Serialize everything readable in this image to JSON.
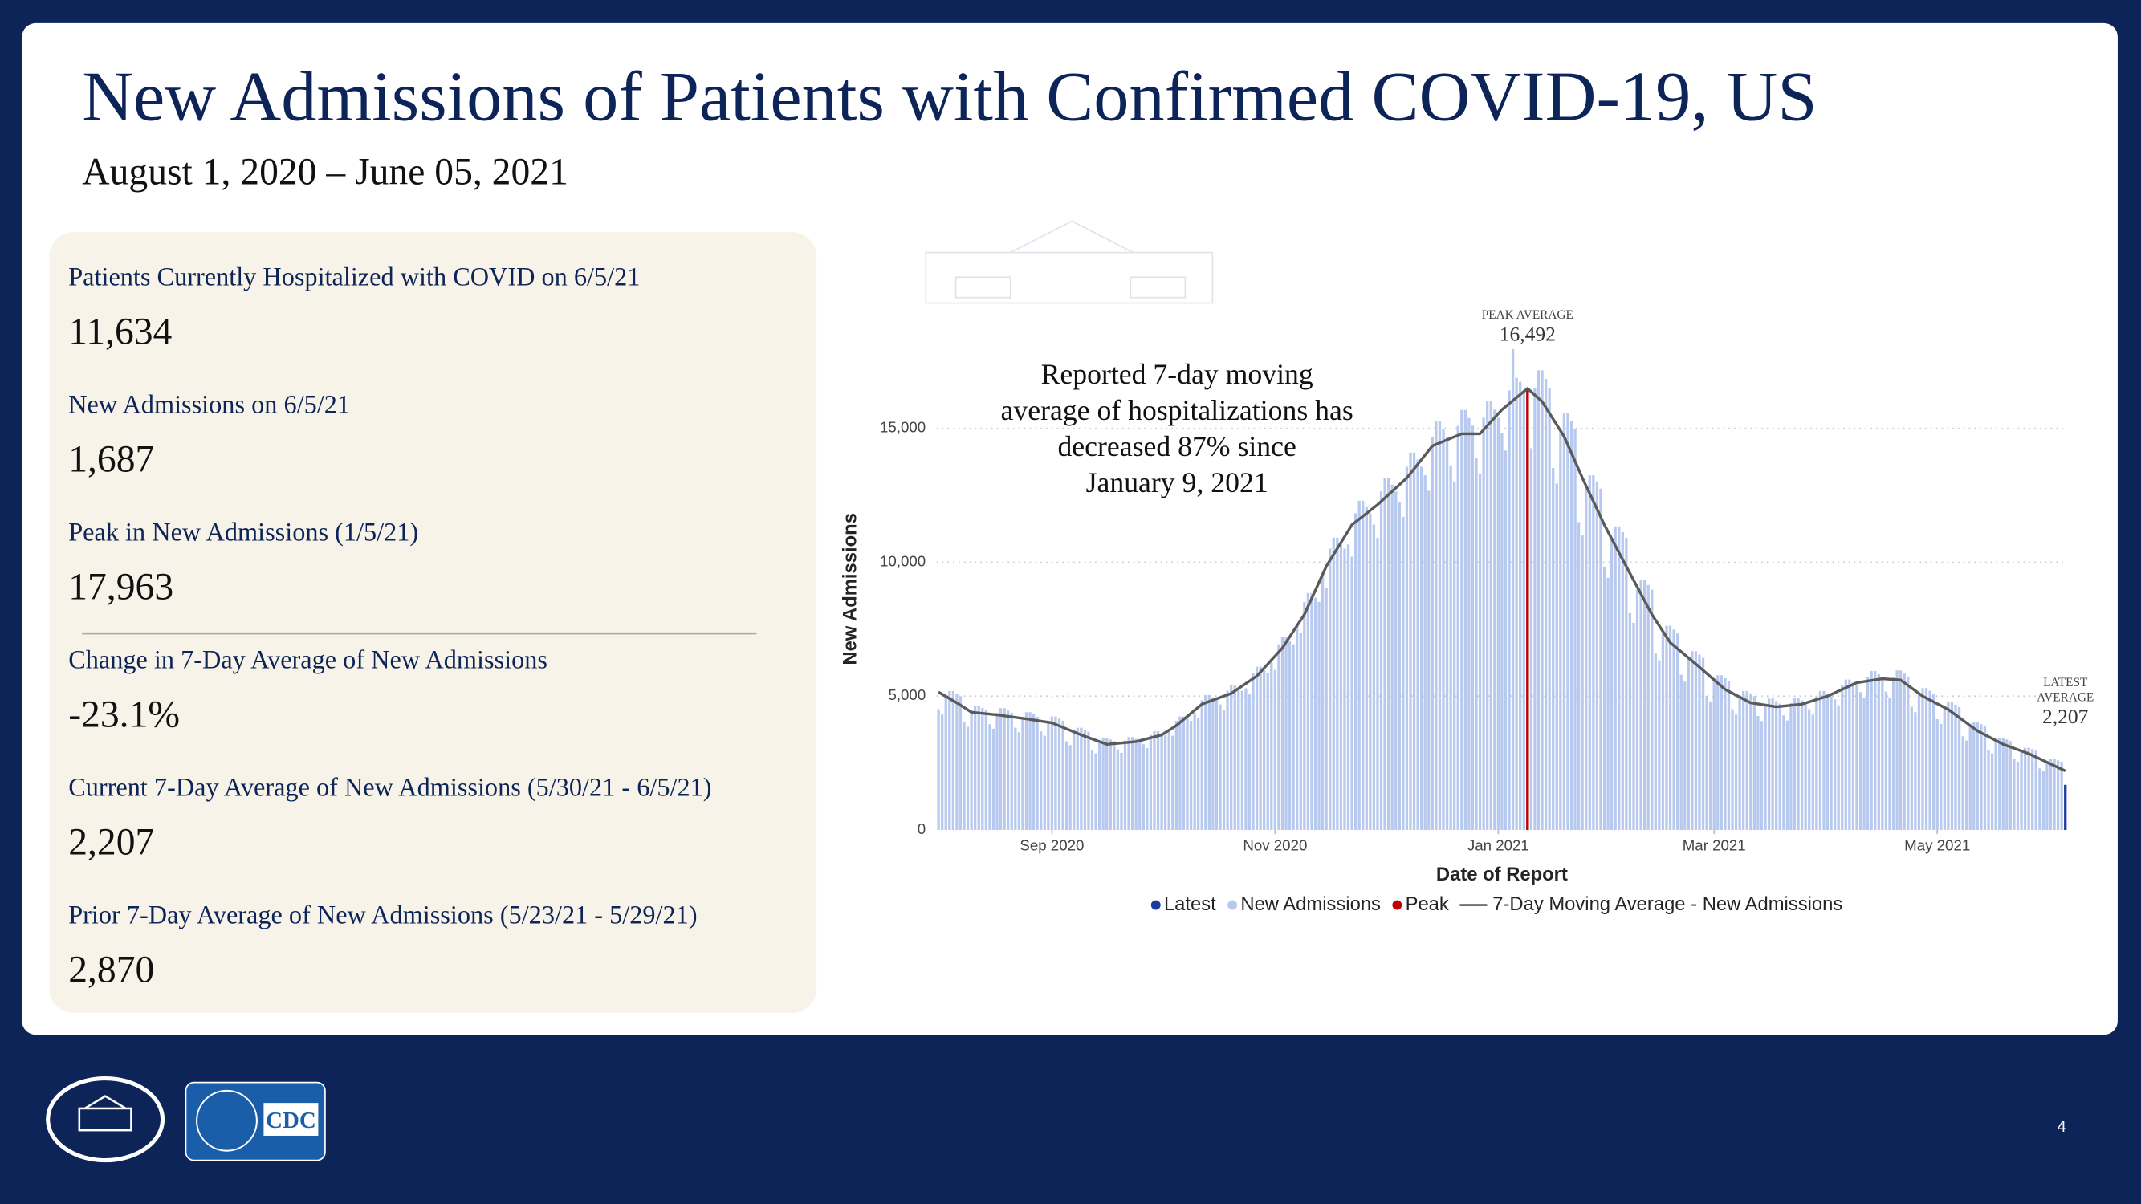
{
  "header": {
    "title": "New Admissions of Patients with Confirmed COVID-19, US",
    "subtitle": "August 1, 2020 – June 05, 2021"
  },
  "stats": [
    {
      "label": "Patients Currently Hospitalized with COVID on 6/5/21",
      "value": "11,634"
    },
    {
      "label": "New Admissions on 6/5/21",
      "value": "1,687"
    },
    {
      "label": "Peak in New Admissions (1/5/21)",
      "value": "17,963"
    },
    {
      "label": "Change in 7-Day Average of New Admissions",
      "value": "-23.1%"
    },
    {
      "label": "Current 7-Day Average of New Admissions (5/30/21 - 6/5/21)",
      "value": "2,207"
    },
    {
      "label": "Prior 7-Day Average of New Admissions (5/23/21 - 5/29/21)",
      "value": "2,870"
    }
  ],
  "chart_data": {
    "type": "bar",
    "x_label": "Date of Report",
    "y_label": "New Admissions",
    "xlim": [
      -0.5,
      308.5
    ],
    "xticks": [
      {
        "value": 31,
        "label": "Sep 2020"
      },
      {
        "value": 92,
        "label": "Nov 2020"
      },
      {
        "value": 153,
        "label": "Jan 2021"
      },
      {
        "value": 212,
        "label": "Mar 2021"
      },
      {
        "value": 273,
        "label": "May 2021"
      }
    ],
    "ylim": [
      0,
      18000
    ],
    "yticks": [
      0,
      {
        "value": 5000,
        "label": "5,000"
      },
      {
        "value": 10000,
        "label": "10,000"
      },
      {
        "value": 15000,
        "label": "15,000"
      }
    ],
    "grid": true,
    "legend": "bottom",
    "callout_lines": [
      "Reported 7-day moving",
      "average of hospitalizations has",
      "decreased 87% since",
      "January 9, 2021"
    ],
    "annotations": [
      {
        "title_lines": [
          "PEAK AVERAGE"
        ],
        "x": 161,
        "value": 16492,
        "label": "16,492"
      },
      {
        "title_lines": [
          "LATEST",
          "AVERAGE"
        ],
        "x": 308,
        "value": 2207,
        "label": "2,207"
      }
    ],
    "series": [
      {
        "name": "Latest",
        "type": "bar",
        "color": "#1c3a9e",
        "x": [
          308
        ],
        "values": [
          1687
        ]
      },
      {
        "name": "New Admissions",
        "type": "bar",
        "color": "#b7c9ee",
        "values": [
          4510,
          4310,
          5000,
          5190,
          5190,
          5100,
          5000,
          4030,
          3850,
          4470,
          4640,
          4640,
          4560,
          4470,
          3950,
          3780,
          4380,
          4550,
          4550,
          4460,
          4380,
          3820,
          3650,
          4230,
          4400,
          4400,
          4320,
          4230,
          3680,
          3520,
          4080,
          4240,
          4240,
          4160,
          4080,
          3310,
          3170,
          3670,
          3820,
          3820,
          3740,
          3670,
          2990,
          2860,
          3320,
          3450,
          3450,
          3380,
          3320,
          3010,
          2880,
          3340,
          3470,
          3470,
          3400,
          3340,
          3200,
          3060,
          3550,
          3690,
          3690,
          3620,
          3550,
          3680,
          3520,
          4080,
          4240,
          4240,
          4160,
          4080,
          4370,
          4180,
          4850,
          5040,
          5040,
          4940,
          4850,
          4690,
          4490,
          5200,
          5410,
          5410,
          5300,
          5200,
          5290,
          5060,
          5870,
          6100,
          6100,
          5980,
          5870,
          6260,
          5980,
          6940,
          7210,
          7210,
          7070,
          6940,
          7680,
          7350,
          8520,
          8850,
          8850,
          8680,
          8520,
          9480,
          9060,
          10510,
          10920,
          10920,
          10710,
          10510,
          10670,
          10210,
          11830,
          12300,
          12300,
          12060,
          11830,
          11410,
          10910,
          12650,
          13140,
          13140,
          12900,
          12650,
          12240,
          11700,
          13570,
          14100,
          14100,
          13830,
          13570,
          13250,
          12670,
          14690,
          15260,
          15260,
          14980,
          14690,
          13620,
          13020,
          15100,
          15690,
          15690,
          15390,
          15100,
          13890,
          13290,
          15400,
          16010,
          16010,
          15700,
          15400,
          14810,
          14170,
          16420,
          17963,
          16890,
          16740,
          16420,
          14900,
          14260,
          16520,
          17170,
          17170,
          16850,
          16520,
          13520,
          12940,
          14990,
          15580,
          15580,
          15290,
          14990,
          11500,
          11000,
          12750,
          13250,
          13250,
          13000,
          12750,
          9840,
          9420,
          10910,
          11340,
          11340,
          11130,
          10910,
          8100,
          7740,
          8980,
          9330,
          9330,
          9150,
          8980,
          6620,
          6340,
          7340,
          7630,
          7630,
          7490,
          7340,
          5800,
          5540,
          6430,
          6680,
          6680,
          6550,
          6430,
          5010,
          4800,
          5560,
          5780,
          5780,
          5670,
          5560,
          4510,
          4310,
          5000,
          5190,
          5190,
          5100,
          5000,
          4260,
          4070,
          4720,
          4910,
          4910,
          4820,
          4720,
          4280,
          4090,
          4740,
          4930,
          4930,
          4840,
          4740,
          4510,
          4310,
          5000,
          5190,
          5190,
          5100,
          5000,
          4880,
          4660,
          5410,
          5620,
          5620,
          5510,
          5410,
          5150,
          4930,
          5710,
          5940,
          5940,
          5820,
          5710,
          5170,
          4950,
          5730,
          5960,
          5960,
          5840,
          5730,
          4600,
          4400,
          5100,
          5300,
          5300,
          5200,
          5100,
          4140,
          3960,
          4590,
          4770,
          4770,
          4680,
          4590,
          3500,
          3340,
          3880,
          4030,
          4030,
          3950,
          3880,
          2990,
          2860,
          3320,
          3450,
          3450,
          3380,
          3320,
          2670,
          2550,
          2960,
          3070,
          3070,
          3020,
          2960,
          2300,
          2200,
          2550,
          2650,
          2650,
          2600,
          2550
        ]
      },
      {
        "name": "Peak",
        "type": "rule",
        "color": "#c00000",
        "x": [
          161
        ],
        "values": [
          16492
        ]
      },
      {
        "name": "7-Day Moving Average - New Admissions",
        "type": "line",
        "color": "#5a5a5a",
        "x": [
          0,
          5,
          9,
          16,
          24,
          31,
          39,
          46,
          54,
          61,
          65,
          72,
          80,
          87,
          94,
          100,
          106,
          113,
          120,
          128,
          135,
          143,
          148,
          154,
          161,
          165,
          171,
          176,
          182,
          187,
          195,
          200,
          207,
          215,
          222,
          229,
          236,
          243,
          251,
          258,
          263,
          269,
          276,
          284,
          291,
          298,
          308
        ],
        "values": [
          5150,
          4750,
          4400,
          4300,
          4150,
          4000,
          3550,
          3200,
          3300,
          3550,
          3900,
          4700,
          5100,
          5750,
          6800,
          8050,
          9850,
          11400,
          12150,
          13150,
          14350,
          14800,
          14800,
          15700,
          16492,
          16000,
          14700,
          13150,
          11400,
          10100,
          8050,
          7000,
          6200,
          5250,
          4750,
          4600,
          4700,
          5000,
          5500,
          5650,
          5600,
          5000,
          4500,
          3700,
          3200,
          2850,
          2207
        ]
      }
    ]
  },
  "footer": {
    "logo_text": "CDC",
    "page_number": "4"
  }
}
